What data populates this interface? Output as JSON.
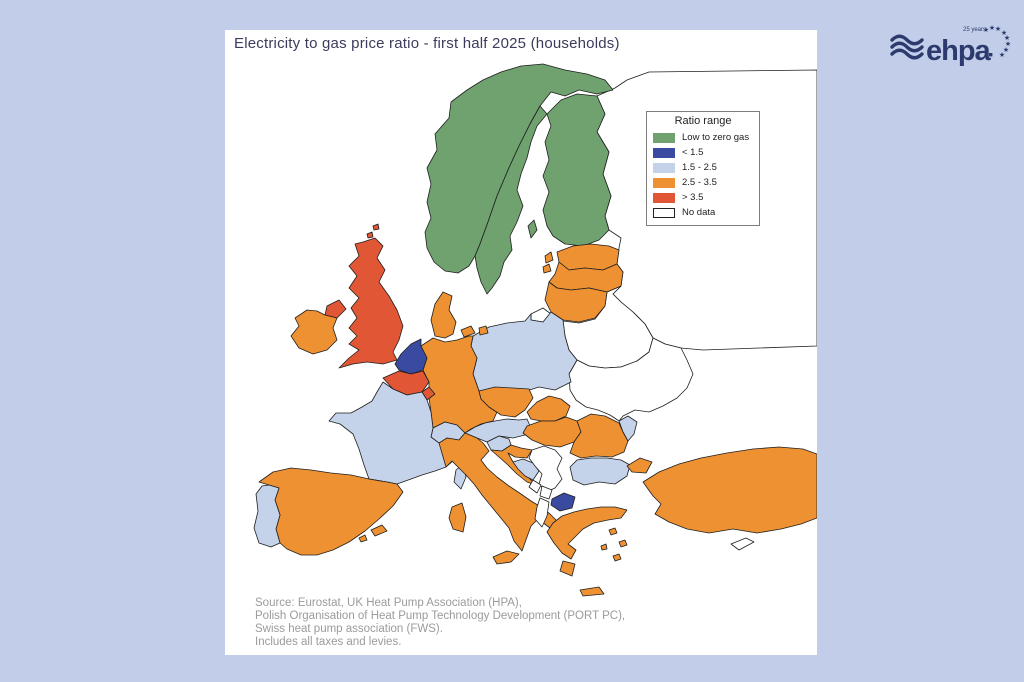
{
  "page": {
    "background_color": "#c2cee9",
    "card_color": "#ffffff",
    "border_color": "#1f1f1f"
  },
  "title": "Electricity to gas price ratio - first half 2025 (households)",
  "legend": {
    "title": "Ratio range",
    "items": [
      {
        "label": "Low to zero gas",
        "color": "#6fa26e"
      },
      {
        "label": "< 1.5",
        "color": "#3a4aa0"
      },
      {
        "label": "1.5 - 2.5",
        "color": "#c4d2ea"
      },
      {
        "label": "2.5 - 3.5",
        "color": "#ee9133"
      },
      {
        "label": "> 3.5",
        "color": "#e15736"
      },
      {
        "label": "No data",
        "color": "#ffffff"
      }
    ]
  },
  "source": {
    "lines": [
      "Source: Eurostat, UK Heat Pump Association (HPA),",
      "Polish Organisation of Heat Pump Technology Development (PORT PC),",
      "Swiss heat pump association (FWS).",
      "Includes all taxes and levies."
    ]
  },
  "logo": {
    "text": "ehpa",
    "anniversary": "25 years",
    "color": "#2c3a6d"
  },
  "chart_data": {
    "type": "choropleth_map",
    "title": "Electricity to gas price ratio - first half 2025 (households)",
    "legend_title": "Ratio range",
    "categories": [
      "Low to zero gas",
      "< 1.5",
      "1.5 - 2.5",
      "2.5 - 3.5",
      "> 3.5",
      "No data"
    ],
    "countries": {
      "Norway": "Low to zero gas",
      "Sweden": "Low to zero gas",
      "Finland": "Low to zero gas",
      "Netherlands": "< 1.5",
      "North Macedonia": "< 1.5",
      "France": "1.5 - 2.5",
      "Portugal": "1.5 - 2.5",
      "Poland": "1.5 - 2.5",
      "Switzerland": "1.5 - 2.5",
      "Austria": "1.5 - 2.5",
      "Slovenia": "1.5 - 2.5",
      "Bosnia and Herzegovina": "1.5 - 2.5",
      "Bulgaria": "1.5 - 2.5",
      "Moldova": "1.5 - 2.5",
      "Ireland": "2.5 - 3.5",
      "Denmark": "2.5 - 3.5",
      "Germany": "2.5 - 3.5",
      "Estonia": "2.5 - 3.5",
      "Latvia": "2.5 - 3.5",
      "Lithuania": "2.5 - 3.5",
      "Czechia": "2.5 - 3.5",
      "Slovakia": "2.5 - 3.5",
      "Hungary": "2.5 - 3.5",
      "Romania": "2.5 - 3.5",
      "Croatia": "2.5 - 3.5",
      "Italy": "2.5 - 3.5",
      "Spain": "2.5 - 3.5",
      "Greece": "2.5 - 3.5",
      "Turkey": "2.5 - 3.5",
      "United Kingdom": "> 3.5",
      "Belgium": "> 3.5",
      "Luxembourg": "> 3.5",
      "Russia": "No data",
      "Belarus": "No data",
      "Ukraine": "No data",
      "Serbia": "No data",
      "Montenegro": "No data",
      "Kosovo": "No data",
      "Albania": "No data",
      "Cyprus": "No data"
    }
  }
}
